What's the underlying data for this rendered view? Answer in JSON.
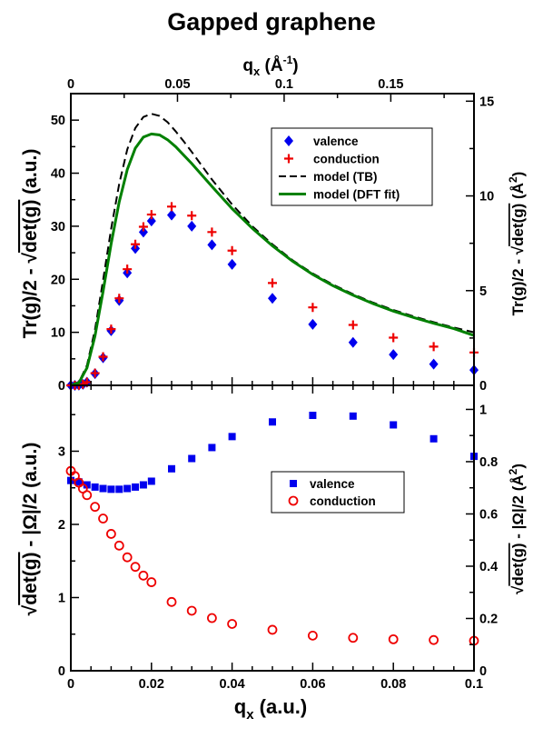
{
  "chart_data": {
    "title": "Gapped graphene",
    "top_axis": {
      "label": "q",
      "label_sub": "x",
      "label_unit": " (Å",
      "label_unit_sup": "-1",
      "label_unit_close": ")",
      "range": [
        0,
        0.189
      ],
      "ticks": [
        "0",
        "0.05",
        "0.1",
        "0.15"
      ],
      "tick_values": [
        0,
        0.05,
        0.1,
        0.15
      ]
    },
    "bottom_axis": {
      "label": "q",
      "label_sub": "x",
      "label_unit": "  (a.u.)",
      "range": [
        0,
        0.1
      ],
      "ticks": [
        "0",
        "0.02",
        "0.04",
        "0.06",
        "0.08",
        "0.1"
      ],
      "tick_values": [
        0,
        0.02,
        0.04,
        0.06,
        0.08,
        0.1
      ]
    },
    "panels": [
      {
        "type": "scatter+line",
        "ylabel": "Tr(g)/2 - √det(g)  (a.u.)",
        "ylabel_left_part": "Tr(g)/2 - ",
        "ylabel_sqrt_part": "det(g)",
        "ylabel_unit": "  (a.u.)",
        "ylim": [
          0,
          55
        ],
        "yticks": [
          "0",
          "10",
          "20",
          "30",
          "40",
          "50"
        ],
        "ytick_values": [
          0,
          10,
          20,
          30,
          40,
          50
        ],
        "right_ylabel": "Tr(g)/2 - √det(g) (Å²)",
        "right_ylabel_left_part": "Tr(g)/2 - ",
        "right_ylabel_sqrt_part": "det(g)",
        "right_ylabel_unit": " (Å",
        "right_ylabel_unit_sup": "2",
        "right_ylabel_unit_close": ")",
        "right_ylim": [
          0,
          15.4
        ],
        "right_yticks": [
          "0",
          "5",
          "10",
          "15"
        ],
        "right_ytick_values": [
          0,
          5,
          10,
          15
        ],
        "legend_position": "top-right",
        "series": [
          {
            "name": "valence",
            "marker": "diamond",
            "color": "#0000ee",
            "x": [
              0.0,
              0.001,
              0.002,
              0.003,
              0.004,
              0.006,
              0.008,
              0.01,
              0.012,
              0.014,
              0.016,
              0.018,
              0.02,
              0.025,
              0.03,
              0.035,
              0.04,
              0.05,
              0.06,
              0.07,
              0.08,
              0.09,
              0.1
            ],
            "y": [
              0.0,
              0.0,
              0.05,
              0.2,
              0.6,
              2.2,
              5.2,
              10.3,
              16.0,
              21.2,
              25.8,
              28.9,
              31.0,
              32.1,
              30.0,
              26.5,
              22.8,
              16.4,
              11.5,
              8.1,
              5.8,
              4.0,
              2.9
            ]
          },
          {
            "name": "conduction",
            "marker": "plus",
            "color": "#ee0000",
            "x": [
              0.0,
              0.001,
              0.002,
              0.003,
              0.004,
              0.006,
              0.008,
              0.01,
              0.012,
              0.014,
              0.016,
              0.018,
              0.02,
              0.025,
              0.03,
              0.035,
              0.04,
              0.05,
              0.06,
              0.07,
              0.08,
              0.09,
              0.1
            ],
            "y": [
              0.0,
              0.0,
              0.05,
              0.2,
              0.6,
              2.3,
              5.4,
              10.6,
              16.4,
              21.9,
              26.6,
              29.9,
              32.2,
              33.7,
              32.0,
              28.9,
              25.4,
              19.3,
              14.7,
              11.4,
              9.0,
              7.3,
              6.2
            ]
          },
          {
            "name": "model (TB)",
            "style": "dashed",
            "color": "#000000",
            "x": [
              0.0,
              0.002,
              0.004,
              0.006,
              0.008,
              0.01,
              0.012,
              0.014,
              0.016,
              0.018,
              0.02,
              0.022,
              0.024,
              0.026,
              0.028,
              0.03,
              0.035,
              0.04,
              0.045,
              0.05,
              0.055,
              0.06,
              0.065,
              0.07,
              0.075,
              0.08,
              0.085,
              0.09,
              0.095,
              0.1
            ],
            "y": [
              0.0,
              0.6,
              3.8,
              10.5,
              19.8,
              29.5,
              38.0,
              44.5,
              48.5,
              50.6,
              51.2,
              50.8,
              49.6,
              47.9,
              46.0,
              44.0,
              38.8,
              34.1,
              30.0,
              26.6,
              23.6,
              21.1,
              19.0,
              17.2,
              15.6,
              14.2,
              13.0,
              11.9,
              10.9,
              10.0
            ]
          },
          {
            "name": "model (DFT fit)",
            "style": "solid",
            "color": "#008000",
            "x": [
              0.0,
              0.002,
              0.004,
              0.006,
              0.008,
              0.01,
              0.012,
              0.014,
              0.016,
              0.018,
              0.02,
              0.022,
              0.024,
              0.026,
              0.028,
              0.03,
              0.035,
              0.04,
              0.045,
              0.05,
              0.055,
              0.06,
              0.065,
              0.07,
              0.075,
              0.08,
              0.085,
              0.09,
              0.095,
              0.1
            ],
            "y": [
              0.0,
              0.5,
              3.3,
              9.3,
              17.7,
              26.7,
              34.6,
              40.7,
              44.7,
              46.8,
              47.4,
              47.2,
              46.3,
              45.0,
              43.4,
              41.8,
              37.5,
              33.3,
              29.6,
              26.3,
              23.4,
              20.9,
              18.8,
              17.0,
              15.4,
              14.0,
              12.8,
              11.7,
              10.7,
              9.4
            ]
          }
        ]
      },
      {
        "type": "scatter",
        "ylabel": "√det(g) - |Ω|/2  (a.u.)",
        "ylabel_sqrt_part": "det(g)",
        "ylabel_right_part": " - |Ω|/2",
        "ylabel_unit": "  (a.u.)",
        "ylim": [
          0,
          3.9
        ],
        "yticks": [
          "0",
          "1",
          "2",
          "3"
        ],
        "ytick_values": [
          0,
          1,
          2,
          3
        ],
        "right_ylabel": "√det(g) - |Ω|/2 (Å²)",
        "right_ylabel_sqrt_part": "det(g)",
        "right_ylabel_right_part": " - |Ω|/2",
        "right_ylabel_unit": " (Å",
        "right_ylabel_unit_sup": "2",
        "right_ylabel_unit_close": ")",
        "right_ylim": [
          0,
          1.092
        ],
        "right_yticks": [
          "0",
          "0.2",
          "0.4",
          "0.6",
          "0.8",
          "1"
        ],
        "right_ytick_values": [
          0,
          0.2,
          0.4,
          0.6,
          0.8,
          1.0
        ],
        "legend_position": "center-right",
        "series": [
          {
            "name": "valence",
            "marker": "square",
            "color": "#0000ee",
            "x": [
              0.0,
              0.002,
              0.004,
              0.006,
              0.008,
              0.01,
              0.012,
              0.014,
              0.016,
              0.018,
              0.02,
              0.025,
              0.03,
              0.035,
              0.04,
              0.05,
              0.06,
              0.07,
              0.08,
              0.09,
              0.1
            ],
            "y": [
              2.6,
              2.58,
              2.54,
              2.51,
              2.49,
              2.48,
              2.48,
              2.49,
              2.51,
              2.54,
              2.59,
              2.76,
              2.9,
              3.05,
              3.2,
              3.4,
              3.49,
              3.48,
              3.36,
              3.17,
              2.93
            ]
          },
          {
            "name": "conduction",
            "marker": "circle",
            "color": "#ee0000",
            "x": [
              0.0,
              0.001,
              0.002,
              0.003,
              0.004,
              0.006,
              0.008,
              0.01,
              0.012,
              0.014,
              0.016,
              0.018,
              0.02,
              0.025,
              0.03,
              0.035,
              0.04,
              0.05,
              0.06,
              0.07,
              0.08,
              0.09,
              0.1
            ],
            "y": [
              2.73,
              2.66,
              2.57,
              2.49,
              2.4,
              2.24,
              2.08,
              1.87,
              1.71,
              1.55,
              1.42,
              1.3,
              1.21,
              0.94,
              0.82,
              0.72,
              0.64,
              0.56,
              0.48,
              0.45,
              0.43,
              0.42,
              0.41
            ]
          }
        ]
      }
    ]
  }
}
